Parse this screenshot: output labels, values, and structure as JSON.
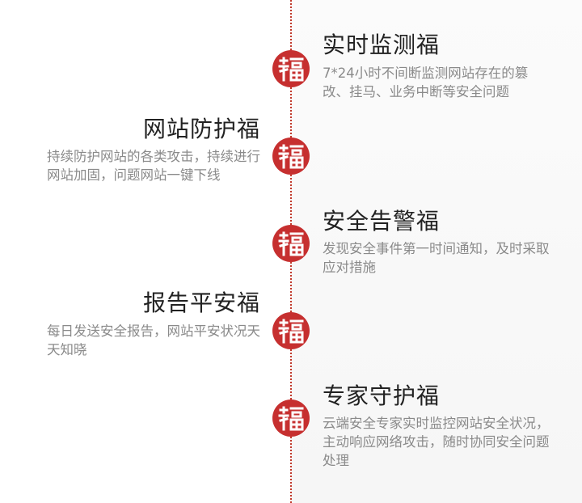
{
  "items": [
    {
      "title": "实时监测福",
      "desc": "7*24小时不间断监测网站存在的篡改、挂马、业务中断等安全问题"
    },
    {
      "title": "网站防护福",
      "desc": "持续防护网站的各类攻击，持续进行网站加固，问题网站一键下线"
    },
    {
      "title": "安全告警福",
      "desc": "发现安全事件第一时间通知，及时采取应对措施"
    },
    {
      "title": "报告平安福",
      "desc": "每日发送安全报告，网站平安状况天天知晓"
    },
    {
      "title": "专家守护福",
      "desc": "云端安全专家实时监控网站安全状况，主动响应网络攻击，随时协同安全问题处理"
    }
  ],
  "seal_glyph": "福",
  "colors": {
    "seal": "#c62f2f",
    "line": "#c0392b",
    "title": "#222222",
    "desc": "#8a8a8a"
  }
}
